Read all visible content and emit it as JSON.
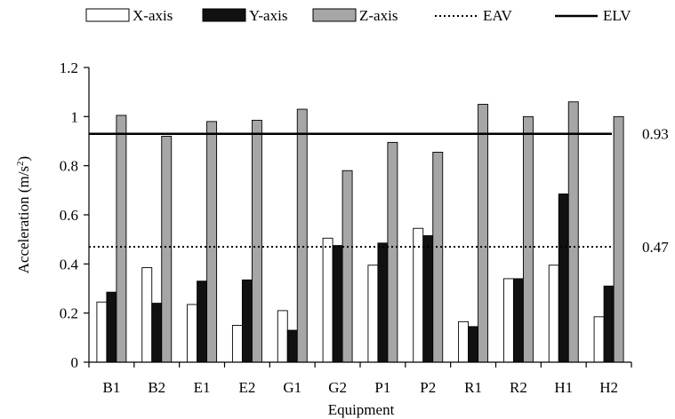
{
  "chart_data": {
    "type": "bar",
    "xlabel": "Equipment",
    "ylabel": "Acceleration (m/s",
    "ylabel_sup": "2",
    "ylabel_close": ")",
    "ylim": [
      0,
      1.2
    ],
    "yticks": [
      0,
      0.2,
      0.4,
      0.6,
      0.8,
      1,
      1.2
    ],
    "ytick_labels": [
      "0",
      "0.2",
      "0.4",
      "0.6",
      "0.8",
      "1",
      "1.2"
    ],
    "categories": [
      "B1",
      "B2",
      "E1",
      "E2",
      "G1",
      "G2",
      "P1",
      "P2",
      "R1",
      "R2",
      "H1",
      "H2"
    ],
    "series": [
      {
        "name": "X-axis",
        "color": "#ffffff",
        "values": [
          0.245,
          0.385,
          0.235,
          0.15,
          0.21,
          0.505,
          0.395,
          0.545,
          0.165,
          0.34,
          0.395,
          0.185
        ]
      },
      {
        "name": "Y-axis",
        "color": "#111111",
        "values": [
          0.285,
          0.24,
          0.33,
          0.335,
          0.13,
          0.475,
          0.485,
          0.515,
          0.145,
          0.34,
          0.685,
          0.31
        ]
      },
      {
        "name": "Z-axis",
        "color": "#a6a6a6",
        "values": [
          1.005,
          0.92,
          0.98,
          0.985,
          1.03,
          0.78,
          0.895,
          0.855,
          1.05,
          1.0,
          1.06,
          1.0
        ]
      }
    ],
    "reference_lines": [
      {
        "name": "EAV",
        "value": 0.47,
        "label": "0.47",
        "style": "dotted"
      },
      {
        "name": "ELV",
        "value": 0.93,
        "label": "0.93",
        "style": "solid"
      }
    ],
    "legend": {
      "placement": "top",
      "entries": [
        {
          "label": "X-axis",
          "kind": "bar",
          "color": "#ffffff"
        },
        {
          "label": "Y-axis",
          "kind": "bar",
          "color": "#111111"
        },
        {
          "label": "Z-axis",
          "kind": "bar",
          "color": "#a6a6a6"
        },
        {
          "label": "EAV",
          "kind": "dotted-line"
        },
        {
          "label": "ELV",
          "kind": "solid-line"
        }
      ]
    },
    "grid": false
  }
}
